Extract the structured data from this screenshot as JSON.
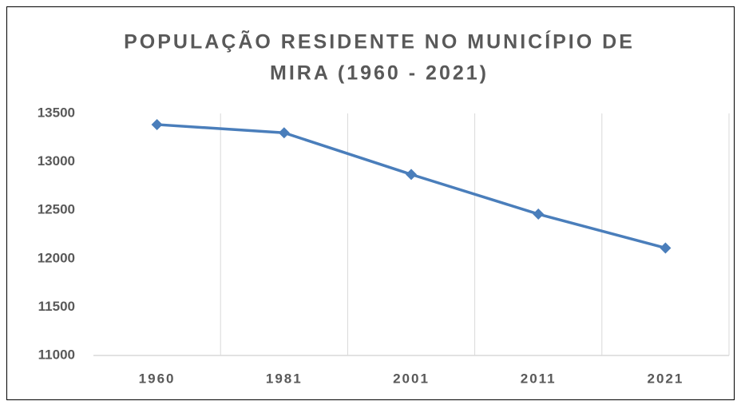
{
  "chart_data": {
    "type": "line",
    "title": [
      "POPULAÇÃO RESIDENTE NO MUNICÍPIO DE",
      "MIRA (1960 - 2021)"
    ],
    "categories": [
      "1960",
      "1981",
      "2001",
      "2011",
      "2021"
    ],
    "series": [
      {
        "color": "#4a7ebb",
        "values": [
          13385,
          13300,
          12870,
          12460,
          12110
        ]
      }
    ],
    "ylim": [
      11000,
      13500
    ],
    "yticks": [
      11000,
      11500,
      12000,
      12500,
      13000,
      13500
    ],
    "grid": "x"
  }
}
